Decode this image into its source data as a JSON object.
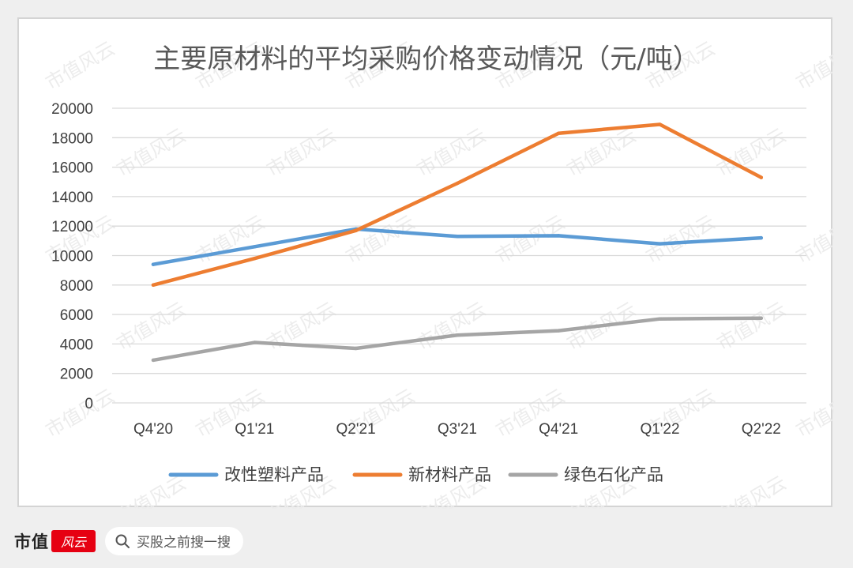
{
  "chart_data": {
    "type": "line",
    "title": "主要原材料的平均采购价格变动情况（元/吨）",
    "categories": [
      "Q4'20",
      "Q1'21",
      "Q2'21",
      "Q3'21",
      "Q4'21",
      "Q1'22",
      "Q2'22"
    ],
    "ylim": [
      0,
      20000
    ],
    "yticks": [
      0,
      2000,
      4000,
      6000,
      8000,
      10000,
      12000,
      14000,
      16000,
      18000,
      20000
    ],
    "grid": true,
    "legend_position": "bottom",
    "xlabel": "",
    "ylabel": "",
    "series": [
      {
        "name": "改性塑料产品",
        "color": "#5b9bd5",
        "values": [
          9400,
          10600,
          11800,
          11300,
          11350,
          10800,
          11200
        ]
      },
      {
        "name": "新材料产品",
        "color": "#ed7d31",
        "values": [
          8000,
          9800,
          11700,
          14900,
          18300,
          18900,
          15300
        ]
      },
      {
        "name": "绿色石化产品",
        "color": "#a5a5a5",
        "values": [
          2900,
          4100,
          3700,
          4600,
          4900,
          5700,
          5750
        ]
      }
    ]
  },
  "watermark": "市值风云",
  "footer": {
    "brand": "市值",
    "brand_logo_text": "风云",
    "search_text": "买股之前搜一搜",
    "search_icon": "search-icon"
  }
}
